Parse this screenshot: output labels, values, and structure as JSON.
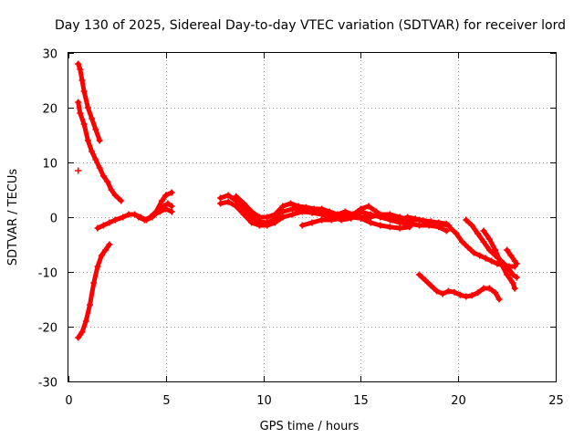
{
  "chart_data": {
    "type": "scatter",
    "title": "Day 130 of 2025, Sidereal Day-to-day VTEC variation (SDTVAR) for receiver lord",
    "xlabel": "GPS time / hours",
    "ylabel": "SDTVAR / TECUs",
    "xlim": [
      0,
      25
    ],
    "ylim": [
      -30,
      30
    ],
    "xticks": [
      0,
      5,
      10,
      15,
      20,
      25
    ],
    "yticks": [
      -30,
      -20,
      -10,
      0,
      10,
      20,
      30
    ],
    "grid": true,
    "marker": "+",
    "color": "#ff0000",
    "series": [
      {
        "name": "trace-1",
        "points": [
          [
            0.5,
            28
          ],
          [
            0.6,
            27
          ],
          [
            0.7,
            25
          ],
          [
            0.8,
            23
          ],
          [
            1.0,
            20
          ],
          [
            1.2,
            18
          ],
          [
            1.4,
            16
          ],
          [
            1.6,
            14
          ]
        ]
      },
      {
        "name": "trace-2",
        "points": [
          [
            0.5,
            21
          ],
          [
            0.6,
            19
          ],
          [
            0.8,
            17
          ],
          [
            1.0,
            14
          ],
          [
            1.2,
            12
          ],
          [
            1.4,
            10.5
          ],
          [
            1.6,
            9
          ],
          [
            1.8,
            7.5
          ],
          [
            2.0,
            6.5
          ],
          [
            2.2,
            5
          ],
          [
            2.4,
            4
          ],
          [
            2.7,
            3
          ]
        ]
      },
      {
        "name": "trace-3",
        "points": [
          [
            0.5,
            -22
          ],
          [
            0.7,
            -21
          ],
          [
            0.9,
            -19
          ],
          [
            1.1,
            -16
          ],
          [
            1.3,
            -12
          ],
          [
            1.5,
            -9
          ],
          [
            1.7,
            -7
          ],
          [
            1.9,
            -6
          ],
          [
            2.1,
            -5
          ]
        ]
      },
      {
        "name": "trace-4",
        "points": [
          [
            0.5,
            8.5
          ]
        ]
      },
      {
        "name": "trace-5",
        "points": [
          [
            1.5,
            -2
          ],
          [
            1.8,
            -1.5
          ],
          [
            2.1,
            -1
          ],
          [
            2.4,
            -0.5
          ],
          [
            2.8,
            0
          ],
          [
            3.1,
            0.5
          ],
          [
            3.4,
            0.5
          ],
          [
            3.7,
            0
          ],
          [
            4.0,
            -0.5
          ],
          [
            4.3,
            0
          ],
          [
            4.6,
            1
          ],
          [
            4.9,
            2
          ],
          [
            5.1,
            2.5
          ],
          [
            5.3,
            2
          ]
        ]
      },
      {
        "name": "trace-6",
        "points": [
          [
            3.6,
            0
          ],
          [
            3.9,
            -0.5
          ],
          [
            4.2,
            0
          ],
          [
            4.5,
            1
          ],
          [
            4.8,
            3
          ],
          [
            5.0,
            4
          ],
          [
            5.3,
            4.5
          ]
        ]
      },
      {
        "name": "trace-7",
        "points": [
          [
            4.4,
            0.5
          ],
          [
            4.7,
            1
          ],
          [
            5.0,
            1.5
          ],
          [
            5.3,
            1
          ]
        ]
      },
      {
        "name": "trace-8",
        "points": [
          [
            7.8,
            3.5
          ],
          [
            8.2,
            4
          ],
          [
            8.6,
            3
          ],
          [
            9.0,
            1.5
          ],
          [
            9.4,
            0
          ],
          [
            9.8,
            -0.8
          ],
          [
            10.2,
            -1
          ],
          [
            10.5,
            -0.5
          ],
          [
            11.0,
            1
          ],
          [
            11.5,
            1.5
          ],
          [
            12.0,
            1.5
          ],
          [
            12.5,
            1.2
          ],
          [
            13.0,
            1
          ],
          [
            13.5,
            0.5
          ],
          [
            14.0,
            0.3
          ],
          [
            14.5,
            0.2
          ],
          [
            15.0,
            0
          ],
          [
            15.5,
            0
          ],
          [
            16.0,
            0.5
          ],
          [
            16.5,
            0.5
          ],
          [
            17.0,
            0
          ],
          [
            17.5,
            -0.5
          ],
          [
            18.0,
            -0.5
          ],
          [
            18.5,
            -1
          ],
          [
            19.0,
            -1.2
          ],
          [
            19.5,
            -1.5
          ]
        ]
      },
      {
        "name": "trace-9",
        "points": [
          [
            7.8,
            2.5
          ],
          [
            8.2,
            2.8
          ],
          [
            8.6,
            2
          ],
          [
            9.0,
            0.5
          ],
          [
            9.4,
            -1
          ],
          [
            9.8,
            -1.5
          ],
          [
            10.2,
            -1.5
          ],
          [
            10.6,
            -1
          ],
          [
            11.0,
            0
          ],
          [
            11.5,
            0.5
          ],
          [
            12.0,
            1
          ],
          [
            12.5,
            0.8
          ],
          [
            13.0,
            0.5
          ],
          [
            13.5,
            0
          ],
          [
            14.0,
            -0.5
          ],
          [
            14.5,
            -0.2
          ],
          [
            15.0,
            1
          ],
          [
            15.5,
            0.5
          ],
          [
            16.0,
            0
          ],
          [
            16.5,
            -0.5
          ],
          [
            17.0,
            -1
          ],
          [
            17.5,
            -1.2
          ],
          [
            18.0,
            -1.5
          ],
          [
            18.5,
            -1.5
          ],
          [
            19.0,
            -1.8
          ],
          [
            19.4,
            -2.5
          ]
        ]
      },
      {
        "name": "trace-10",
        "points": [
          [
            8.6,
            3.8
          ],
          [
            9.0,
            2.5
          ],
          [
            9.4,
            1
          ],
          [
            9.8,
            0
          ],
          [
            10.2,
            0
          ],
          [
            10.6,
            0.5
          ],
          [
            11.0,
            2
          ],
          [
            11.4,
            2.5
          ],
          [
            11.8,
            2
          ],
          [
            12.2,
            1.8
          ],
          [
            12.6,
            1.5
          ],
          [
            13.0,
            1.5
          ],
          [
            13.4,
            1
          ],
          [
            13.8,
            0.5
          ],
          [
            14.2,
            1
          ],
          [
            14.6,
            0.5
          ],
          [
            15.0,
            1.5
          ],
          [
            15.4,
            2
          ],
          [
            15.8,
            1
          ],
          [
            16.2,
            0
          ],
          [
            16.6,
            -0.5
          ],
          [
            17.0,
            -0.5
          ],
          [
            17.4,
            0
          ],
          [
            17.8,
            -0.3
          ],
          [
            18.2,
            -0.6
          ],
          [
            18.6,
            -0.8
          ],
          [
            19.0,
            -1
          ],
          [
            19.4,
            -1.2
          ]
        ]
      },
      {
        "name": "trace-11",
        "points": [
          [
            12.0,
            -1.5
          ],
          [
            12.5,
            -1
          ],
          [
            13.0,
            -0.5
          ],
          [
            13.5,
            -0.5
          ],
          [
            14.0,
            -0.2
          ],
          [
            14.5,
            0
          ],
          [
            15.0,
            -0.2
          ],
          [
            15.5,
            -1
          ],
          [
            16.0,
            -1.5
          ],
          [
            16.5,
            -1.8
          ],
          [
            17.0,
            -2
          ],
          [
            17.5,
            -1.8
          ]
        ]
      },
      {
        "name": "trace-12",
        "points": [
          [
            18.0,
            -10.5
          ],
          [
            18.3,
            -11.5
          ],
          [
            18.6,
            -12.5
          ],
          [
            18.9,
            -13.5
          ],
          [
            19.2,
            -14
          ],
          [
            19.5,
            -13.5
          ],
          [
            19.8,
            -13.7
          ],
          [
            20.1,
            -14.2
          ],
          [
            20.4,
            -14.5
          ],
          [
            20.7,
            -14.3
          ],
          [
            21.0,
            -13.8
          ],
          [
            21.3,
            -13
          ],
          [
            21.6,
            -13
          ],
          [
            21.9,
            -13.8
          ],
          [
            22.1,
            -15
          ]
        ]
      },
      {
        "name": "trace-13",
        "points": [
          [
            19.6,
            -2
          ],
          [
            19.9,
            -3
          ],
          [
            20.2,
            -4.5
          ],
          [
            20.5,
            -5.5
          ],
          [
            20.8,
            -6.5
          ],
          [
            21.1,
            -7
          ],
          [
            21.4,
            -7.5
          ],
          [
            21.7,
            -8
          ],
          [
            22.0,
            -8.5
          ],
          [
            22.3,
            -8.8
          ],
          [
            22.6,
            -9
          ],
          [
            22.9,
            -9
          ]
        ]
      },
      {
        "name": "trace-14",
        "points": [
          [
            20.4,
            -0.5
          ],
          [
            20.7,
            -1.5
          ],
          [
            21.0,
            -3
          ],
          [
            21.3,
            -4.5
          ],
          [
            21.6,
            -6
          ],
          [
            21.9,
            -7
          ],
          [
            22.2,
            -8
          ],
          [
            22.5,
            -9
          ],
          [
            22.8,
            -10.5
          ],
          [
            23.0,
            -11
          ]
        ]
      },
      {
        "name": "trace-15",
        "points": [
          [
            21.3,
            -2.5
          ],
          [
            21.6,
            -4
          ],
          [
            21.9,
            -6
          ],
          [
            22.2,
            -8.5
          ],
          [
            22.5,
            -10.5
          ],
          [
            22.8,
            -12
          ],
          [
            22.9,
            -13
          ]
        ]
      },
      {
        "name": "trace-16",
        "points": [
          [
            22.5,
            -6
          ],
          [
            22.7,
            -7
          ],
          [
            22.9,
            -8
          ],
          [
            23.0,
            -8.5
          ]
        ]
      }
    ]
  }
}
